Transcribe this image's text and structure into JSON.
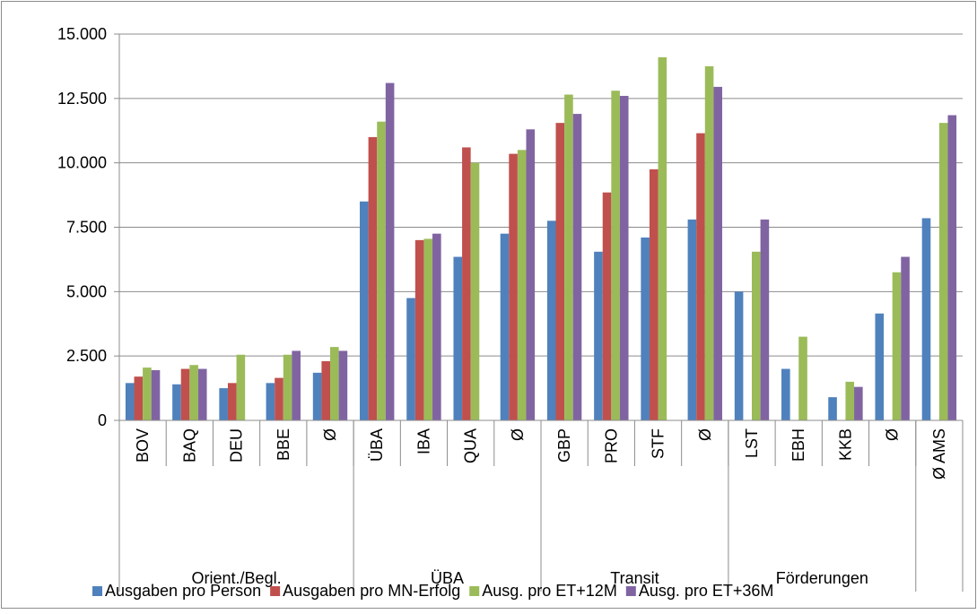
{
  "chart_data": {
    "type": "bar",
    "title": "",
    "xlabel": "",
    "ylabel": "",
    "ylim": [
      0,
      15000
    ],
    "y_ticks": [
      0,
      2500,
      5000,
      7500,
      10000,
      12500,
      15000
    ],
    "y_tick_labels": [
      "0",
      "2.500",
      "5.000",
      "7.500",
      "10.000",
      "12.500",
      "15.000"
    ],
    "grid": true,
    "legend_position": "bottom",
    "categories": [
      "BOV",
      "BAQ",
      "DEU",
      "BBE",
      "Ø",
      "ÜBA",
      "IBA",
      "QUA",
      "Ø",
      "GBP",
      "PRO",
      "STF",
      "Ø",
      "LST",
      "EBH",
      "KKB",
      "Ø",
      "Ø AMS"
    ],
    "groups": [
      {
        "label": "Orient./Begl.",
        "count": 5
      },
      {
        "label": "ÜBA",
        "count": 4
      },
      {
        "label": "Transit",
        "count": 4
      },
      {
        "label": "Förderungen",
        "count": 4
      },
      {
        "label": "",
        "count": 1
      }
    ],
    "series": [
      {
        "name": "Ausgaben pro Person",
        "color": "#4f81bd",
        "values": [
          1450,
          1400,
          1250,
          1450,
          1850,
          8500,
          4750,
          6350,
          7250,
          7750,
          6550,
          7100,
          7800,
          5000,
          2000,
          900,
          4150,
          7850
        ]
      },
      {
        "name": "Ausgaben pro MN-Erfolg",
        "color": "#c0504d",
        "values": [
          1700,
          2000,
          1450,
          1650,
          2300,
          11000,
          7000,
          10600,
          10350,
          11550,
          8850,
          9750,
          11150,
          null,
          null,
          null,
          null,
          null
        ]
      },
      {
        "name": "Ausg. pro ET+12M",
        "color": "#9bbb59",
        "values": [
          2050,
          2150,
          2550,
          2550,
          2850,
          11600,
          7050,
          10000,
          10500,
          12650,
          12800,
          14100,
          13750,
          6550,
          3250,
          1500,
          5750,
          11550
        ]
      },
      {
        "name": "Ausg. pro ET+36M",
        "color": "#8064a2",
        "values": [
          1950,
          2000,
          null,
          2700,
          2700,
          13100,
          7250,
          null,
          11300,
          11900,
          12600,
          null,
          12950,
          7800,
          null,
          1300,
          6350,
          11850
        ]
      }
    ]
  }
}
